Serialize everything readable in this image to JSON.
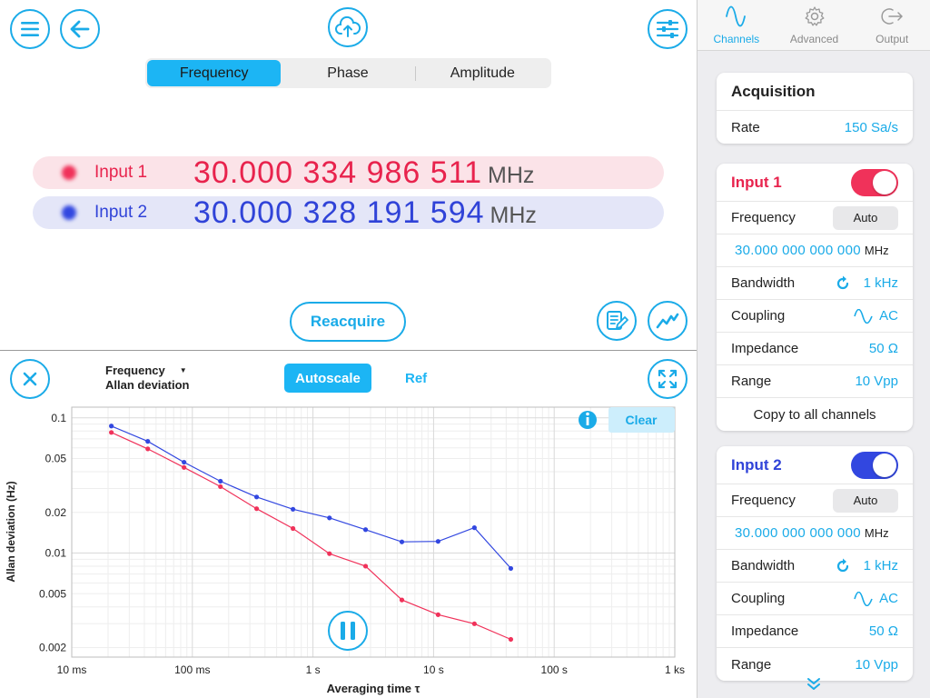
{
  "header": {
    "segments": [
      {
        "label": "Frequency",
        "active": true
      },
      {
        "label": "Phase",
        "active": false
      },
      {
        "label": "Amplitude",
        "active": false
      }
    ]
  },
  "readouts": [
    {
      "name": "Input 1",
      "value": "30.000 334 986 511",
      "unit": "MHz",
      "color": "#e8234d"
    },
    {
      "name": "Input 2",
      "value": "30.000 328 191 594",
      "unit": "MHz",
      "color": "#3043d8"
    }
  ],
  "reacquire_label": "Reacquire",
  "plot": {
    "title_line1": "Frequency",
    "title_line2": "Allan deviation",
    "autoscale_label": "Autoscale",
    "ref_label": "Ref",
    "clear_label": "Clear"
  },
  "chart_data": {
    "type": "line",
    "x_scale": "log",
    "y_scale": "log",
    "xlim": [
      0.01,
      1000
    ],
    "ylim": [
      0.0017,
      0.12
    ],
    "xlabel": "Averaging time τ",
    "ylabel": "Allan deviation (Hz)",
    "x_ticks": [
      {
        "value": 0.01,
        "label": "10 ms"
      },
      {
        "value": 0.1,
        "label": "100 ms"
      },
      {
        "value": 1,
        "label": "1 s"
      },
      {
        "value": 10,
        "label": "10 s"
      },
      {
        "value": 100,
        "label": "100 s"
      },
      {
        "value": 1000,
        "label": "1 ks"
      }
    ],
    "y_ticks": [
      {
        "value": 0.1,
        "label": "0.1"
      },
      {
        "value": 0.05,
        "label": "0.05"
      },
      {
        "value": 0.02,
        "label": "0.02"
      },
      {
        "value": 0.01,
        "label": "0.01"
      },
      {
        "value": 0.005,
        "label": "0.005"
      },
      {
        "value": 0.002,
        "label": "0.002"
      }
    ],
    "grid": true,
    "series": [
      {
        "color": "#3247e0",
        "x": [
          0.0213,
          0.0427,
          0.0853,
          0.171,
          0.341,
          0.683,
          1.37,
          2.73,
          5.46,
          10.9,
          21.8,
          43.7
        ],
        "y": [
          0.087,
          0.067,
          0.047,
          0.034,
          0.026,
          0.0211,
          0.0182,
          0.0149,
          0.0121,
          0.0122,
          0.0154,
          0.0077
        ]
      },
      {
        "color": "#f0325a",
        "x": [
          0.0213,
          0.0427,
          0.0853,
          0.171,
          0.341,
          0.683,
          1.37,
          2.73,
          5.46,
          10.9,
          21.8,
          43.7
        ],
        "y": [
          0.078,
          0.059,
          0.043,
          0.031,
          0.0213,
          0.0152,
          0.0099,
          0.008,
          0.0045,
          0.0035,
          0.003,
          0.0023
        ]
      }
    ]
  },
  "sidebar": {
    "tabs": [
      {
        "label": "Channels",
        "icon": "sine-wave-icon",
        "active": true
      },
      {
        "label": "Advanced",
        "icon": "gear-icon",
        "active": false
      },
      {
        "label": "Output",
        "icon": "output-arrow-icon",
        "active": false
      }
    ],
    "acquisition": {
      "title": "Acquisition",
      "rate_label": "Rate",
      "rate_value": "150 Sa/s"
    },
    "input1": {
      "title": "Input 1",
      "toggle_color": "#f0325a",
      "frequency_label": "Frequency",
      "auto_label": "Auto",
      "frequency_value": "30.000 000 000 000",
      "frequency_unit": "MHz",
      "bandwidth_label": "Bandwidth",
      "bandwidth_value": "1 kHz",
      "coupling_label": "Coupling",
      "coupling_value": "AC",
      "impedance_label": "Impedance",
      "impedance_value": "50 Ω",
      "range_label": "Range",
      "range_value": "10 Vpp",
      "copy_label": "Copy to all channels"
    },
    "input2": {
      "title": "Input 2",
      "toggle_color": "#3247e0",
      "frequency_label": "Frequency",
      "auto_label": "Auto",
      "frequency_value": "30.000 000 000 000",
      "frequency_unit": "MHz",
      "bandwidth_label": "Bandwidth",
      "bandwidth_value": "1 kHz",
      "coupling_label": "Coupling",
      "coupling_value": "AC",
      "impedance_label": "Impedance",
      "impedance_value": "50 Ω",
      "range_label": "Range",
      "range_value": "10 Vpp"
    }
  },
  "accent_color": "#1aabe8"
}
